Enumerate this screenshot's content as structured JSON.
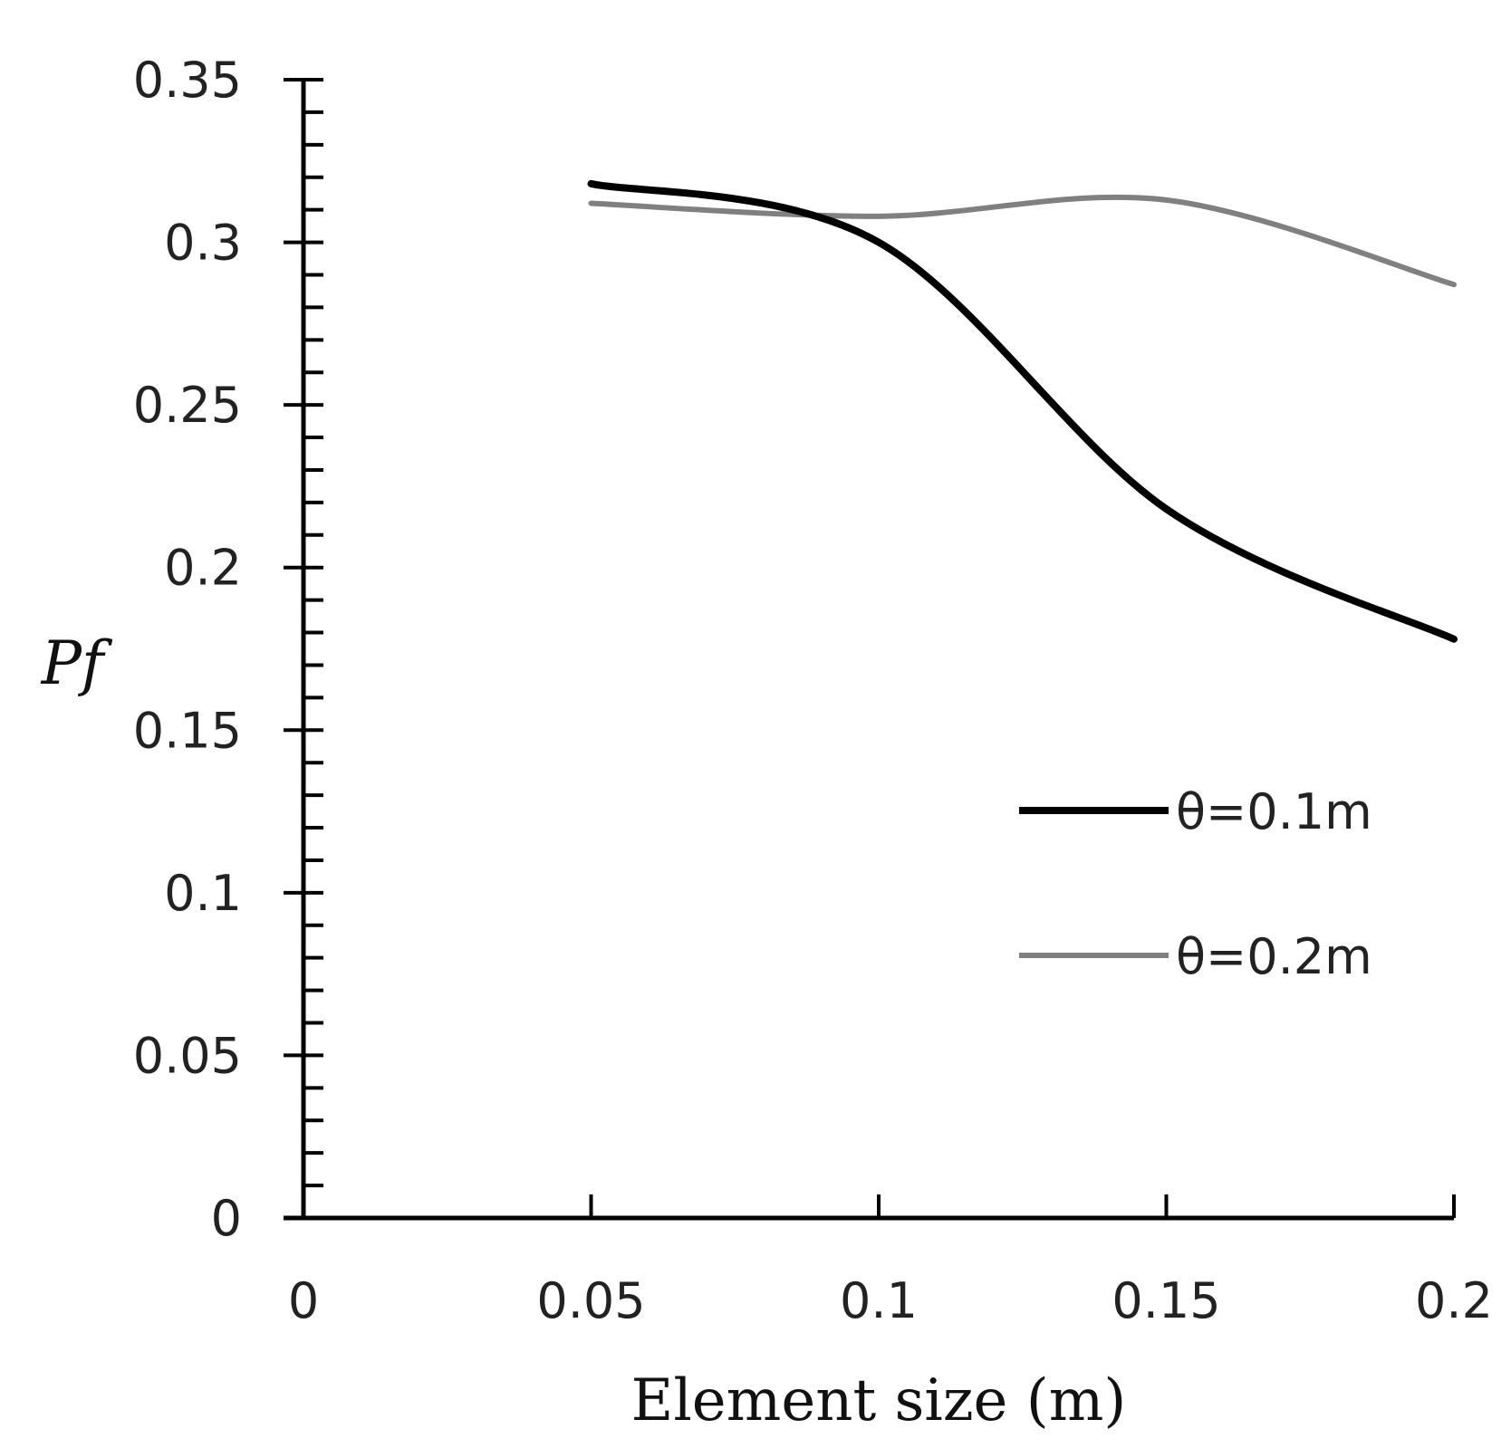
{
  "chart_data": {
    "type": "line",
    "title": "",
    "xlabel": "Element  size (m)",
    "ylabel": "Pf",
    "xlim": [
      0,
      0.2
    ],
    "ylim": [
      0,
      0.35
    ],
    "x_ticks": [
      {
        "value": 0,
        "label": "0"
      },
      {
        "value": 0.05,
        "label": "0.05"
      },
      {
        "value": 0.1,
        "label": "0.1"
      },
      {
        "value": 0.15,
        "label": "0.15"
      },
      {
        "value": 0.2,
        "label": "0.2"
      }
    ],
    "y_ticks": [
      {
        "value": 0,
        "label": "0"
      },
      {
        "value": 0.05,
        "label": "0.05"
      },
      {
        "value": 0.1,
        "label": "0.1"
      },
      {
        "value": 0.15,
        "label": "0.15"
      },
      {
        "value": 0.2,
        "label": "0.2"
      },
      {
        "value": 0.25,
        "label": "0.25"
      },
      {
        "value": 0.3,
        "label": "0.3"
      },
      {
        "value": 0.35,
        "label": "0.35"
      }
    ],
    "y_minor_step": 0.01,
    "grid": false,
    "legend_position": "right",
    "series": [
      {
        "name": "θ=0.1m",
        "color": "#000000",
        "x": [
          0.05,
          0.1,
          0.15,
          0.2
        ],
        "y": [
          0.318,
          0.3,
          0.218,
          0.178
        ]
      },
      {
        "name": "θ=0.2m",
        "color": "#808080",
        "x": [
          0.05,
          0.1,
          0.15,
          0.2
        ],
        "y": [
          0.312,
          0.308,
          0.313,
          0.287
        ]
      }
    ]
  }
}
